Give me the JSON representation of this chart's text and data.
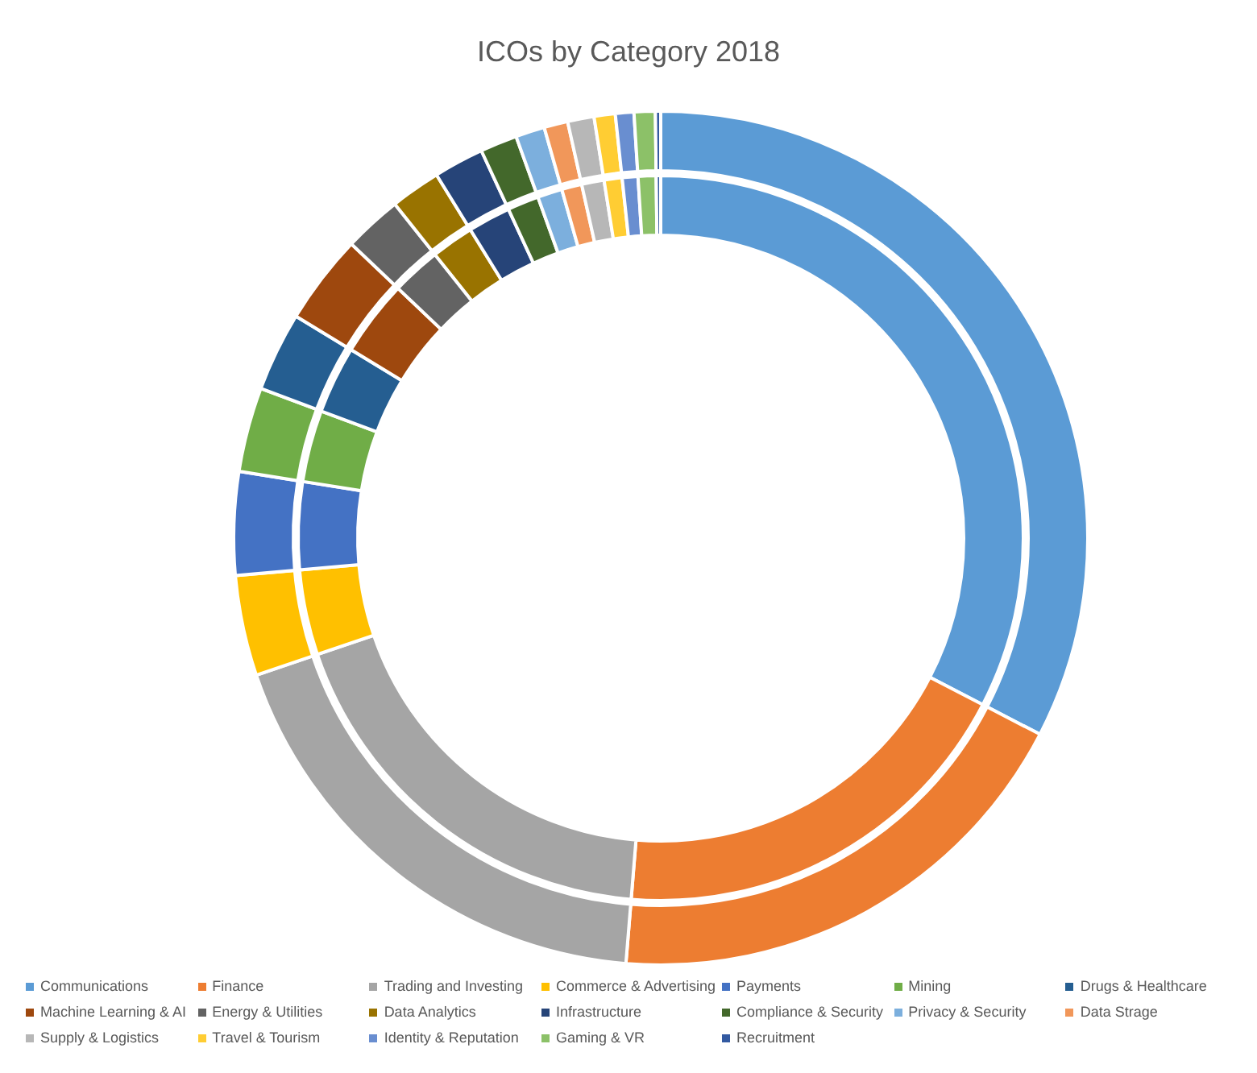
{
  "chart_data": {
    "type": "donut",
    "title": "ICOs by Category 2018",
    "legend": "bottom",
    "categories": [
      "Communications",
      "Finance",
      "Trading and Investing",
      "Commerce & Advertising",
      "Payments",
      "Mining",
      "Drugs & Healthcare",
      "Machine Learning & AI",
      "Energy & Utilities",
      "Data Analytics",
      "Infrastructure",
      "Compliance & Security",
      "Privacy & Security",
      "Data Strage",
      "Supply & Logistics",
      "Travel & Tourism",
      "Identity & Reputation",
      "Gaming & VR",
      "Recruitment"
    ],
    "colors": [
      "#5b9bd5",
      "#ed7d31",
      "#a5a5a5",
      "#ffc000",
      "#4472c4",
      "#70ad47",
      "#255e91",
      "#9e480e",
      "#636363",
      "#997300",
      "#264478",
      "#43682b",
      "#7cafdd",
      "#f1975a",
      "#b7b7b7",
      "#ffcd33",
      "#698ed0",
      "#8cc168",
      "#335aa1"
    ],
    "series": [
      {
        "values": [
          32.6,
          18.7,
          18.5,
          3.8,
          3.9,
          3.2,
          3.0,
          3.4,
          2.2,
          1.9,
          1.9,
          1.4,
          1.1,
          0.9,
          1.0,
          0.8,
          0.7,
          0.8,
          0.2
        ]
      },
      {
        "values": [
          32.6,
          18.7,
          18.5,
          3.8,
          3.9,
          3.2,
          3.0,
          3.4,
          2.2,
          1.9,
          1.9,
          1.4,
          1.1,
          0.9,
          1.0,
          0.8,
          0.7,
          0.8,
          0.2
        ]
      }
    ]
  }
}
